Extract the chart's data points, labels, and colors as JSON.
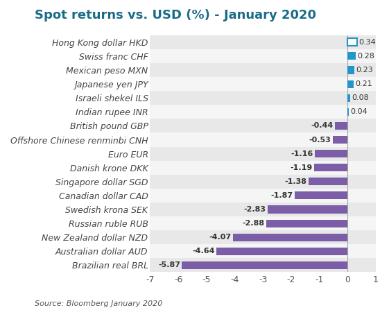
{
  "title": "Spot returns vs. USD (%) - January 2020",
  "source": "Source: Bloomberg January 2020",
  "categories": [
    "Brazilian real BRL",
    "Australian dollar AUD",
    "New Zealand dollar NZD",
    "Russian ruble RUB",
    "Swedish krona SEK",
    "Canadian dollar CAD",
    "Singapore dollar SGD",
    "Danish krone DKK",
    "Euro EUR",
    "Offshore Chinese renminbi CNH",
    "British pound GBP",
    "Indian rupee INR",
    "Israeli shekel ILS",
    "Japanese yen JPY",
    "Mexican peso MXN",
    "Swiss franc CHF",
    "Hong Kong dollar HKD"
  ],
  "values": [
    -5.87,
    -4.64,
    -4.07,
    -2.88,
    -2.83,
    -1.87,
    -1.38,
    -1.19,
    -1.16,
    -0.53,
    -0.44,
    0.04,
    0.08,
    0.21,
    0.23,
    0.28,
    0.34
  ],
  "bar_color_positive": "#2196C8",
  "bar_color_negative": "#7B5EA7",
  "bar_color_hkd_outline": "#2196C8",
  "bar_color_hkd_fill": "white",
  "figure_bg_color": "#ffffff",
  "row_color_even": "#e8e8e8",
  "row_color_odd": "#f5f5f5",
  "title_color": "#1a6b8a",
  "source_color": "#555555",
  "value_color_positive": "#333333",
  "value_color_negative": "#333333",
  "ytick_color": "#444444",
  "xlim": [
    -7,
    1
  ],
  "xticks": [
    -7,
    -6,
    -5,
    -4,
    -3,
    -2,
    -1,
    0,
    1
  ],
  "title_fontsize": 13,
  "tick_fontsize": 9,
  "label_fontsize": 9,
  "value_fontsize": 8,
  "source_fontsize": 8
}
